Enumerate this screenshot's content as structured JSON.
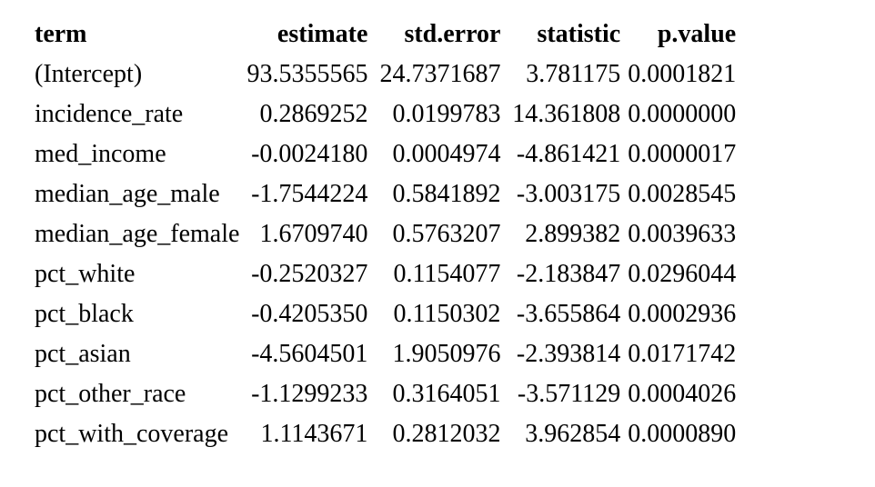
{
  "table": {
    "columns": [
      "term",
      "estimate",
      "std.error",
      "statistic",
      "p.value"
    ],
    "rows": [
      [
        "(Intercept)",
        "93.5355565",
        "24.7371687",
        "3.781175",
        "0.0001821"
      ],
      [
        "incidence_rate",
        "0.2869252",
        "0.0199783",
        "14.361808",
        "0.0000000"
      ],
      [
        "med_income",
        "-0.0024180",
        "0.0004974",
        "-4.861421",
        "0.0000017"
      ],
      [
        "median_age_male",
        "-1.7544224",
        "0.5841892",
        "-3.003175",
        "0.0028545"
      ],
      [
        "median_age_female",
        "1.6709740",
        "0.5763207",
        "2.899382",
        "0.0039633"
      ],
      [
        "pct_white",
        "-0.2520327",
        "0.1154077",
        "-2.183847",
        "0.0296044"
      ],
      [
        "pct_black",
        "-0.4205350",
        "0.1150302",
        "-3.655864",
        "0.0002936"
      ],
      [
        "pct_asian",
        "-4.5604501",
        "1.9050976",
        "-2.393814",
        "0.0171742"
      ],
      [
        "pct_other_race",
        "-1.1299233",
        "0.3164051",
        "-3.571129",
        "0.0004026"
      ],
      [
        "pct_with_coverage",
        "1.1143671",
        "0.2812032",
        "3.962854",
        "0.0000890"
      ]
    ]
  }
}
